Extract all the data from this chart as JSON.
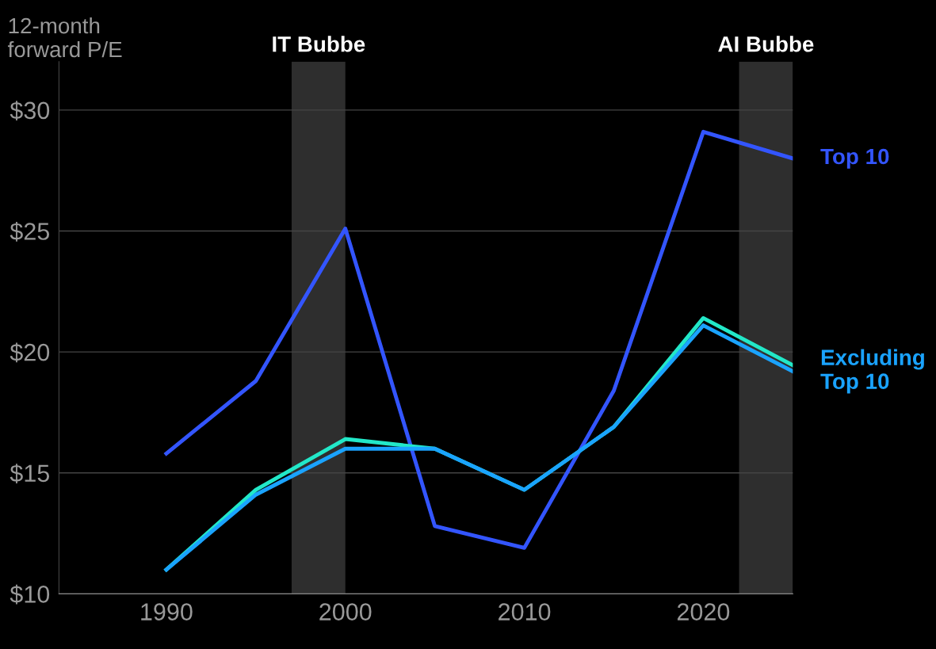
{
  "chart_data": {
    "type": "line",
    "ylabel": "12-month\nforward P/E",
    "x": [
      1990,
      1995,
      2000,
      2005,
      2010,
      2015,
      2020,
      2025
    ],
    "series": [
      {
        "name": "Top 10",
        "color": "#3355ff",
        "values": [
          15.8,
          18.8,
          25.1,
          12.8,
          11.9,
          18.4,
          29.1,
          28.0
        ]
      },
      {
        "color": "#22e8c8",
        "values": [
          11.0,
          14.3,
          16.4,
          16.0,
          14.3,
          16.9,
          21.4,
          19.45
        ]
      },
      {
        "name": "Excluding\nTop 10",
        "color": "#1aa3ff",
        "values": [
          11.0,
          14.1,
          16.0,
          16.0,
          14.3,
          16.9,
          21.1,
          19.2
        ]
      }
    ],
    "xlim": [
      1984,
      2025
    ],
    "xticks": [
      1990,
      2000,
      2010,
      2020
    ],
    "ylim": [
      10,
      32
    ],
    "yticks": [
      {
        "value": 10,
        "label": "$10"
      },
      {
        "value": 15,
        "label": "$15"
      },
      {
        "value": 20,
        "label": "$20"
      },
      {
        "value": 25,
        "label": "$25"
      },
      {
        "value": 30,
        "label": "$30"
      }
    ],
    "bands": [
      {
        "axis": "x",
        "from": 1997,
        "to": 2000,
        "label": "IT Bubbe",
        "color": "#2e2e2e"
      },
      {
        "axis": "x",
        "from": 2022,
        "to": 2025,
        "label": "AI Bubbe",
        "color": "#2e2e2e"
      }
    ],
    "grid": "y",
    "legend": false,
    "marker": "none",
    "line_style": "solid"
  }
}
